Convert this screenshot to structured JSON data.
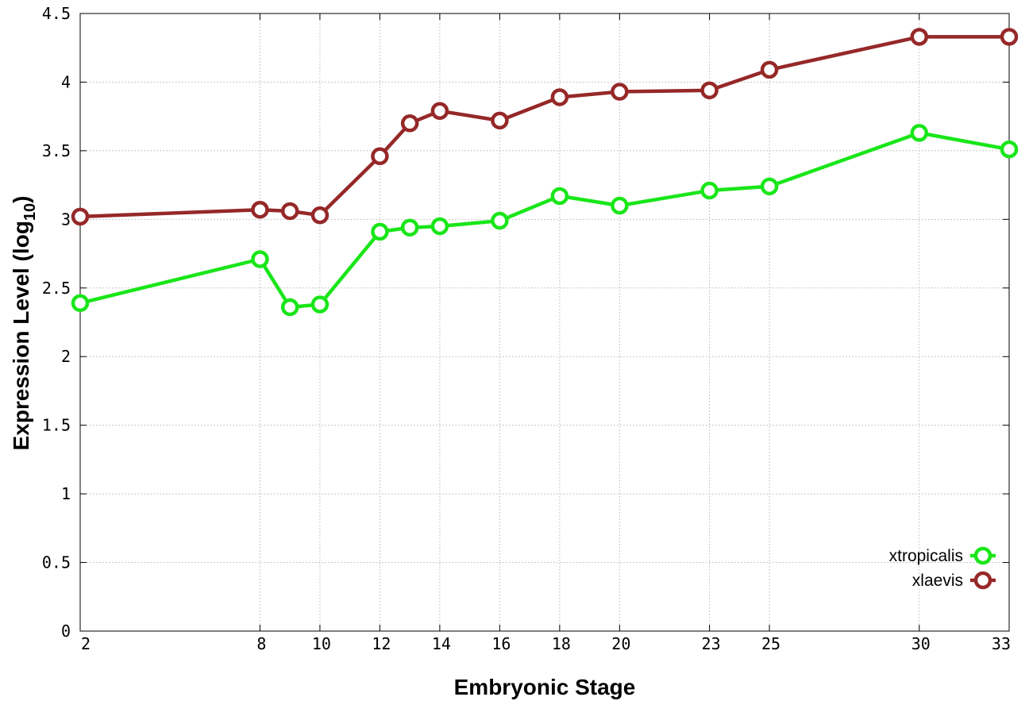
{
  "chart_data": {
    "type": "line",
    "xlabel": "Embryonic Stage",
    "ylabel": "Expression Level (log",
    "ylabel_subscript": "10",
    "ylabel_close": ")",
    "x": [
      2,
      8,
      9,
      10,
      12,
      13,
      14,
      16,
      18,
      20,
      23,
      25,
      30,
      33
    ],
    "xticks": [
      2,
      8,
      10,
      12,
      14,
      16,
      18,
      20,
      23,
      25,
      30,
      33
    ],
    "xtick_labels": [
      "2",
      "8",
      "10",
      "12",
      "14",
      "16",
      "18",
      "20",
      "23",
      "25",
      "30",
      "33"
    ],
    "yticks": [
      0,
      0.5,
      1,
      1.5,
      2,
      2.5,
      3,
      3.5,
      4,
      4.5
    ],
    "ytick_labels": [
      "0",
      "0.5",
      "1",
      "1.5",
      "2",
      "2.5",
      "3",
      "3.5",
      "4",
      "4.5"
    ],
    "xlim": [
      2,
      33
    ],
    "ylim": [
      0,
      4.5
    ],
    "grid": true,
    "legend_position": "bottom-right",
    "series": [
      {
        "name": "xtropicalis",
        "color": "#19e619",
        "values": [
          2.39,
          2.71,
          2.36,
          2.38,
          2.91,
          2.94,
          2.95,
          2.99,
          3.17,
          3.1,
          3.21,
          3.24,
          3.63,
          3.51
        ]
      },
      {
        "name": "xlaevis",
        "color": "#962828",
        "values": [
          3.02,
          3.07,
          3.06,
          3.03,
          3.46,
          3.7,
          3.79,
          3.72,
          3.89,
          3.93,
          3.94,
          4.09,
          4.33,
          4.33
        ]
      }
    ]
  }
}
